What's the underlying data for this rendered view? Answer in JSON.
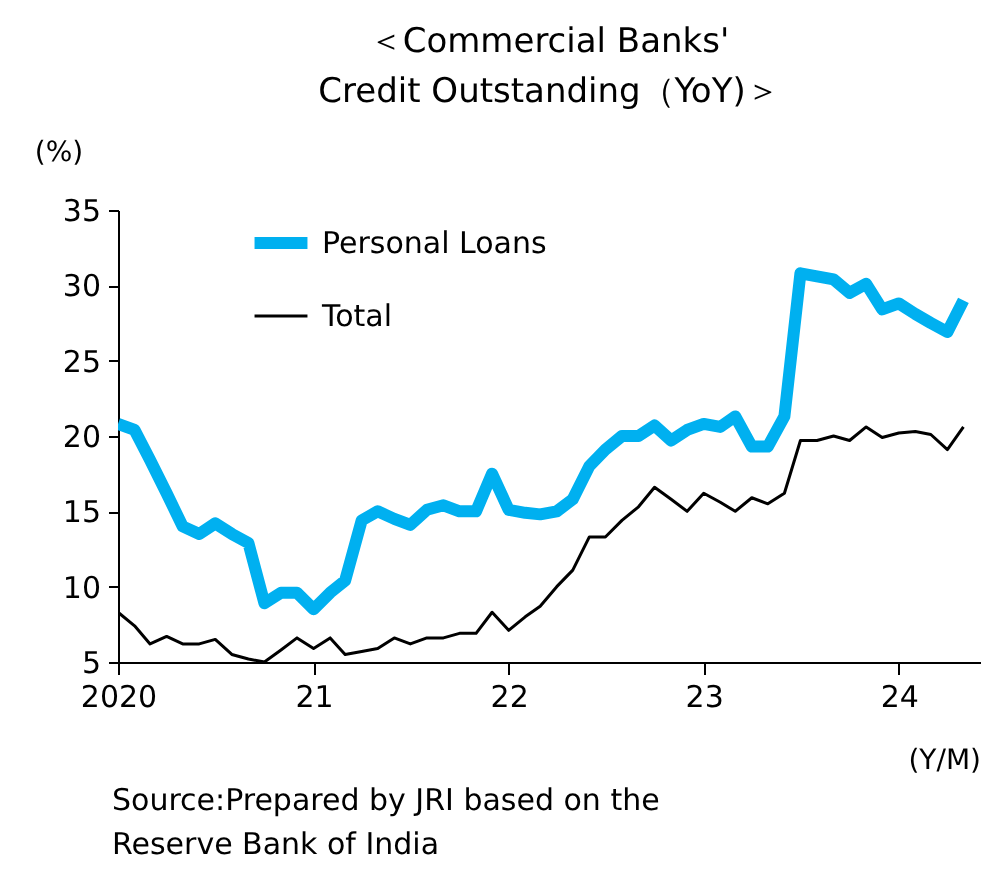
{
  "chart_data": {
    "type": "line",
    "title": "＜Commercial Banks'\nCredit Outstanding（YoY)＞",
    "ylabel": "(%)",
    "xlabel": "(Y/M)",
    "x": [
      "2020-01",
      "2020-02",
      "2020-03",
      "2020-04",
      "2020-05",
      "2020-06",
      "2020-07",
      "2020-08",
      "2020-09",
      "2020-10",
      "2020-11",
      "2020-12",
      "2021-01",
      "2021-02",
      "2021-03",
      "2021-04",
      "2021-05",
      "2021-06",
      "2021-07",
      "2021-08",
      "2021-09",
      "2021-10",
      "2021-11",
      "2021-12",
      "2022-01",
      "2022-02",
      "2022-03",
      "2022-04",
      "2022-05",
      "2022-06",
      "2022-07",
      "2022-08",
      "2022-09",
      "2022-10",
      "2022-11",
      "2022-12",
      "2023-01",
      "2023-02",
      "2023-03",
      "2023-04",
      "2023-05",
      "2023-06",
      "2023-07",
      "2023-08",
      "2023-09",
      "2023-10",
      "2023-11",
      "2023-12",
      "2024-01",
      "2024-02",
      "2024-03",
      "2024-04",
      "2024-05"
    ],
    "series": [
      {
        "name": "Personal Loans",
        "color": "#00b0f0",
        "values": [
          20.8,
          20.4,
          18.4,
          16.2,
          14.0,
          13.5,
          14.2,
          13.5,
          12.9,
          8.9,
          9.6,
          9.6,
          8.5,
          9.6,
          10.4,
          14.4,
          15.0,
          14.5,
          14.1,
          15.1,
          15.4,
          15.0,
          15.0,
          17.5,
          15.1,
          14.9,
          14.8,
          15.0,
          15.8,
          18.0,
          19.1,
          20.0,
          20.0,
          20.7,
          19.7,
          20.4,
          20.8,
          20.6,
          21.3,
          19.3,
          19.3,
          21.3,
          30.8,
          30.6,
          30.4,
          29.5,
          30.1,
          28.4,
          28.8,
          28.1,
          27.5,
          26.9,
          29.0
        ]
      },
      {
        "name": "Total",
        "color": "#000000",
        "values": [
          8.3,
          7.4,
          6.2,
          6.7,
          6.2,
          6.2,
          6.5,
          5.5,
          5.2,
          5.0,
          5.8,
          6.6,
          5.9,
          6.6,
          5.5,
          5.7,
          5.9,
          6.6,
          6.2,
          6.6,
          6.6,
          6.9,
          6.9,
          8.3,
          7.1,
          8.0,
          8.7,
          10.0,
          11.1,
          13.3,
          13.3,
          14.4,
          15.3,
          16.6,
          15.8,
          15.0,
          16.2,
          15.6,
          15.0,
          15.9,
          15.5,
          16.2,
          19.7,
          19.7,
          20.0,
          19.7,
          20.6,
          19.9,
          20.2,
          20.3,
          20.1,
          19.1,
          20.6
        ]
      }
    ],
    "xlim": [
      "2020-01",
      "2024-06"
    ],
    "xticks": [
      "2020",
      {
        "value": "2021",
        "label": "21"
      },
      {
        "value": "2022",
        "label": "22"
      },
      {
        "value": "2023",
        "label": "23"
      },
      {
        "value": "2024",
        "label": "24"
      }
    ],
    "ylim": [
      5,
      35
    ],
    "yticks": [
      5,
      10,
      15,
      20,
      25,
      30,
      35
    ],
    "grid": false,
    "legend": "top left",
    "marker": "none",
    "line_style": "solid",
    "annotations": [
      "Source:Prepared by JRI based on the\nReserve Bank of India"
    ]
  }
}
